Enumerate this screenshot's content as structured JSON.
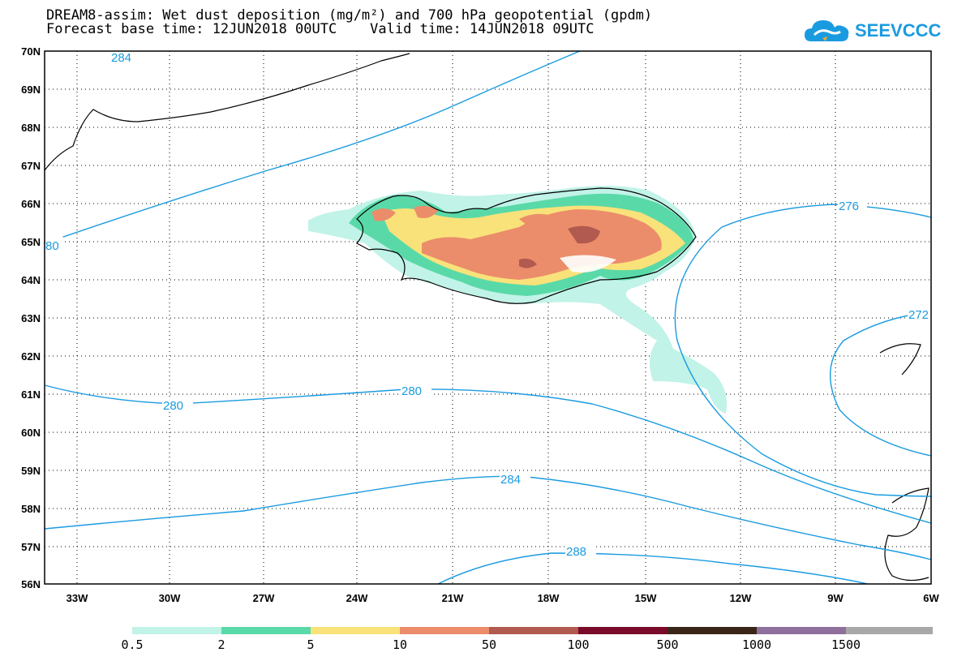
{
  "title": {
    "line1": "DREAM8-assim: Wet dust deposition (mg/m²) and 700 hPa geopotential (gpdm)",
    "line2": "Forecast base time: 12JUN2018 00UTC    Valid time: 14JUN2018 09UTC"
  },
  "logo": {
    "text": "SEEVCCC",
    "icon": "cloud-icon",
    "color": "#1a9be0"
  },
  "map": {
    "lat_labels": [
      "70N",
      "69N",
      "68N",
      "67N",
      "66N",
      "65N",
      "64N",
      "63N",
      "62N",
      "61N",
      "60N",
      "59N",
      "58N",
      "57N",
      "56N"
    ],
    "lon_labels": [
      "33W",
      "30W",
      "27W",
      "24W",
      "21W",
      "18W",
      "15W",
      "12W",
      "9W",
      "6W"
    ],
    "contour_color": "#1a9be0",
    "contour_labels": [
      "284",
      "80",
      "276",
      "272",
      "280",
      "280",
      "284",
      "288"
    ],
    "region": "Iceland"
  },
  "colorbar": {
    "labels": [
      "0.5",
      "2",
      "5",
      "10",
      "50",
      "100",
      "500",
      "1000",
      "1500"
    ],
    "colors": [
      "#c1f3e8",
      "#5ad9a8",
      "#f9e27a",
      "#eb8d6b",
      "#b05a50",
      "#7a0a2a",
      "#3a2618",
      "#8f6f9c",
      "#a8a8a8"
    ]
  }
}
